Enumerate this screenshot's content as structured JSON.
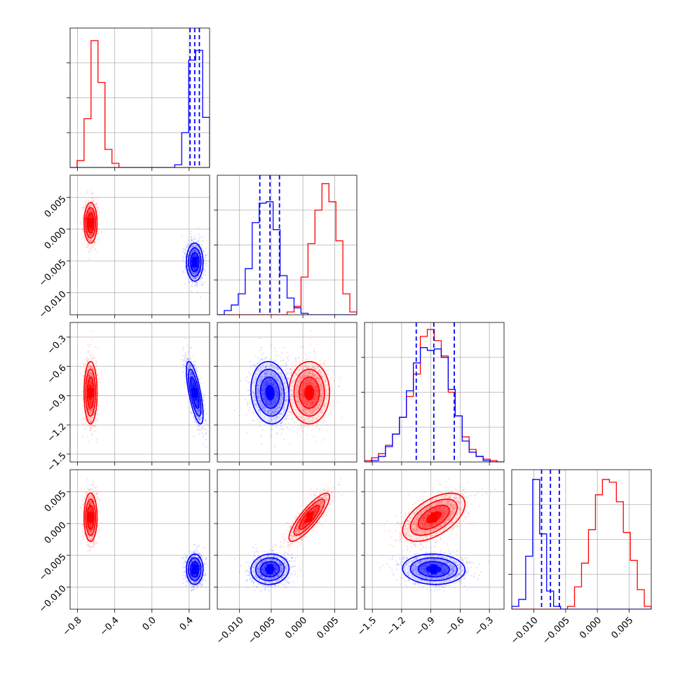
{
  "chart_data": {
    "type": "corner",
    "title": "",
    "parameters": [
      {
        "ticks": [
          -0.8,
          -0.4,
          0.0,
          0.4
        ],
        "tick_labels": [
          "−0.8",
          "−0.4",
          "0.0",
          "0.4"
        ],
        "range": [
          -0.88,
          0.62
        ]
      },
      {
        "ticks": [
          -0.01,
          -0.005,
          0.0,
          0.005
        ],
        "tick_labels": [
          "−0.010",
          "−0.005",
          "0.000",
          "0.005"
        ],
        "range": [
          -0.0135,
          0.0085
        ]
      },
      {
        "ticks": [
          -1.5,
          -1.2,
          -0.9,
          -0.6,
          -0.3
        ],
        "tick_labels": [
          "−1.5",
          "−1.2",
          "−0.9",
          "−0.6",
          "−0.3"
        ],
        "range": [
          -1.58,
          -0.15
        ]
      },
      {
        "ticks": [
          -0.01,
          -0.005,
          0.0,
          0.005
        ],
        "tick_labels": [
          "−0.010",
          "−0.005",
          "0.000",
          "0.005"
        ],
        "range": [
          -0.0135,
          0.0085
        ]
      }
    ],
    "series": [
      {
        "color": "#ff0000",
        "means": [
          -0.66,
          0.001,
          -0.87,
          0.001
        ],
        "stds": [
          0.035,
          0.0016,
          0.16,
          0.0019
        ],
        "correlations": [
          [
            1,
            0,
            0,
            0
          ],
          [
            0,
            1,
            0,
            0.85
          ],
          [
            0,
            0,
            1,
            0.55
          ],
          [
            0,
            0.85,
            0.55,
            1
          ]
        ],
        "histograms": [
          [
            0,
            0.05,
            0.35,
            0.91,
            0.61,
            0.13,
            0.03,
            0,
            0,
            0,
            0,
            0,
            0,
            0,
            0,
            0,
            0,
            0,
            0,
            0
          ],
          [
            0,
            0,
            0,
            0,
            0,
            0,
            0,
            0,
            0,
            0,
            0.02,
            0.06,
            0.27,
            0.51,
            0.75,
            0.94,
            0.81,
            0.53,
            0.15,
            0.02
          ],
          [
            0.01,
            0.03,
            0.06,
            0.12,
            0.2,
            0.32,
            0.47,
            0.63,
            0.9,
            0.95,
            0.87,
            0.76,
            0.5,
            0.33,
            0.18,
            0.09,
            0.04,
            0.02,
            0.01,
            0
          ],
          [
            0,
            0,
            0,
            0,
            0,
            0,
            0,
            0,
            0.02,
            0.16,
            0.33,
            0.57,
            0.82,
            0.93,
            0.91,
            0.77,
            0.55,
            0.35,
            0.14,
            0.02
          ]
        ],
        "quantile_lines": []
      },
      {
        "color": "#0000ff",
        "means": [
          0.46,
          -0.0052,
          -0.87,
          -0.0072
        ],
        "stds": [
          0.045,
          0.0015,
          0.16,
          0.0012
        ],
        "correlations": [
          [
            1,
            0,
            -0.7,
            0
          ],
          [
            0,
            1,
            -0.1,
            0.05
          ],
          [
            -0.7,
            -0.1,
            1,
            -0.05
          ],
          [
            0,
            0.05,
            -0.05,
            1
          ]
        ],
        "histograms": [
          [
            0,
            0,
            0,
            0,
            0,
            0,
            0,
            0,
            0,
            0,
            0,
            0,
            0,
            0,
            0,
            0.02,
            0.25,
            0.77,
            0.84,
            0.36
          ],
          [
            0,
            0.03,
            0.07,
            0.15,
            0.33,
            0.66,
            0.8,
            0.81,
            0.61,
            0.28,
            0.12,
            0.05,
            0.01,
            0,
            0,
            0,
            0,
            0,
            0,
            0
          ],
          [
            0,
            0.01,
            0.04,
            0.11,
            0.2,
            0.32,
            0.51,
            0.71,
            0.82,
            0.8,
            0.81,
            0.75,
            0.52,
            0.33,
            0.15,
            0.07,
            0.04,
            0.01,
            0,
            0
          ],
          [
            0.02,
            0.07,
            0.38,
            0.93,
            0.54,
            0.13,
            0.02,
            0,
            0,
            0,
            0,
            0,
            0,
            0,
            0,
            0,
            0,
            0,
            0,
            0
          ]
        ],
        "quantile_lines": [
          [
            0.41,
            0.46,
            0.51
          ],
          [
            -0.0068,
            -0.0052,
            -0.0037
          ],
          [
            -1.05,
            -0.87,
            -0.66
          ],
          [
            -0.0088,
            -0.0074,
            -0.006
          ]
        ]
      }
    ],
    "grid": true,
    "legend": "none"
  }
}
